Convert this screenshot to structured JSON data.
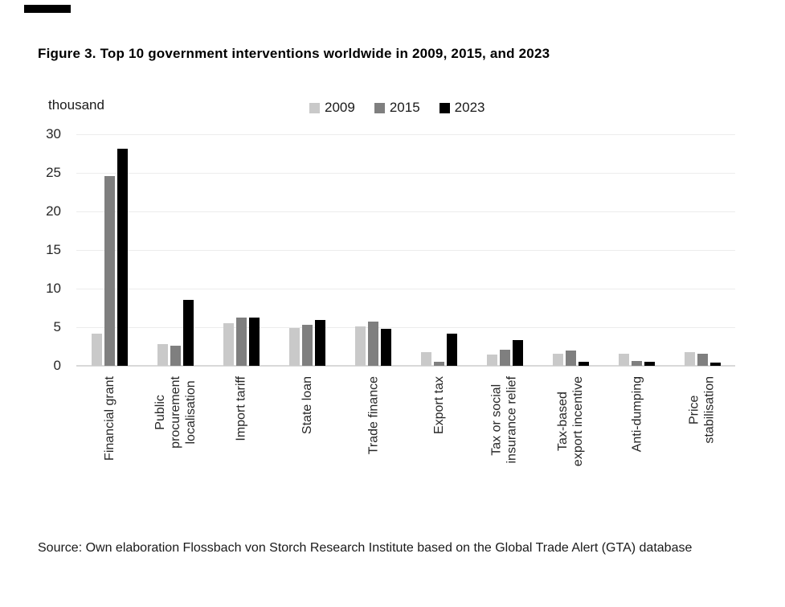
{
  "page": {
    "title": "Figure 3. Top 10 government interventions worldwide in 2009, 2015, and 2023",
    "source": "Source: Own elaboration Flossbach von Storch Research Institute based on the Global Trade Alert (GTA) database"
  },
  "chart_data": {
    "type": "bar",
    "title": "Figure 3. Top 10 government interventions worldwide in 2009, 2015, and 2023",
    "ylabel": "thousand",
    "xlabel": "",
    "unit_label": "thousand",
    "categories": [
      "Financial grant",
      "Public\nprocurement\nlocalisation",
      "Import tariff",
      "State loan",
      "Trade finance",
      "Export tax",
      "Tax or social\ninsurance relief",
      "Tax-based\nexport incentive",
      "Anti-dumping",
      "Price\nstabilisation"
    ],
    "series": [
      {
        "name": "2009",
        "color": "#c9c9c9",
        "values": [
          4.2,
          2.8,
          5.5,
          4.9,
          5.1,
          1.8,
          1.5,
          1.6,
          1.6,
          1.8
        ]
      },
      {
        "name": "2015",
        "color": "#7f7f7f",
        "values": [
          24.6,
          2.6,
          6.3,
          5.3,
          5.7,
          0.5,
          2.1,
          2.0,
          0.6,
          1.6
        ]
      },
      {
        "name": "2023",
        "color": "#000000",
        "values": [
          28.1,
          8.5,
          6.3,
          5.9,
          4.8,
          4.2,
          3.3,
          0.5,
          0.5,
          0.4
        ]
      }
    ],
    "ylim": [
      0,
      30
    ],
    "yticks": [
      0,
      5,
      10,
      15,
      20,
      25,
      30
    ],
    "grid": true,
    "legend_position": "top-center"
  }
}
